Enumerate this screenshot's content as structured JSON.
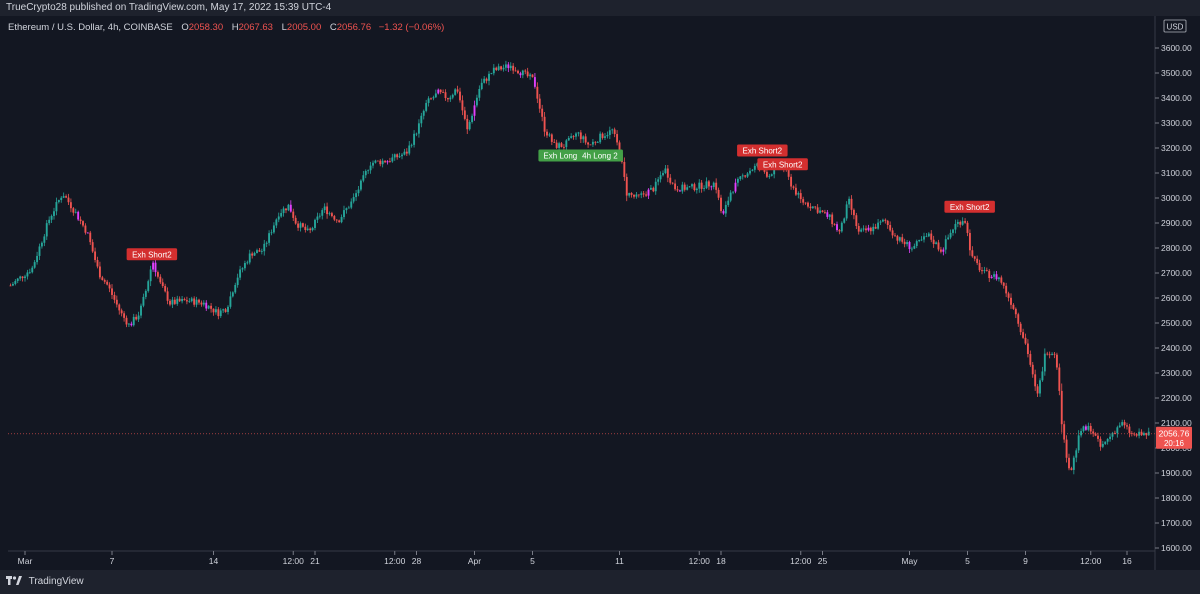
{
  "header": {
    "publish_line": "TrueCrypto28 published on TradingView.com, May 17, 2022 15:39 UTC-4"
  },
  "legend": {
    "symbol": "Ethereum / U.S. Dollar, 4h, COINBASE",
    "o_label": "O",
    "o_value": "2058.30",
    "h_label": "H",
    "h_value": "2067.63",
    "l_label": "L",
    "l_value": "2005.00",
    "c_label": "C",
    "c_value": "2056.76",
    "change": "−1.32 (−0.06%)"
  },
  "footer": {
    "brand": "TradingView"
  },
  "colors": {
    "background": "#131722",
    "up": "#26a69a",
    "down": "#ef5350",
    "bar_pink": "#e040fb",
    "signal_short": "#d32f2f",
    "signal_long": "#43a047",
    "price_label": "#ef5350"
  },
  "chart_data": {
    "type": "candlestick",
    "timeframe": "4h",
    "currency_label": "USD",
    "ylim": [
      1600,
      3700
    ],
    "y_ticks": [
      1600,
      1700,
      1800,
      1900,
      2000,
      2100,
      2200,
      2300,
      2400,
      2500,
      2600,
      2700,
      2800,
      2900,
      3000,
      3100,
      3200,
      3300,
      3400,
      3500,
      3600
    ],
    "y_tick_labels": [
      "1600.00",
      "1700.00",
      "1800.00",
      "1900.00",
      "2000.00",
      "2100.00",
      "2200.00",
      "2300.00",
      "2400.00",
      "2500.00",
      "2600.00",
      "2700.00",
      "2800.00",
      "2900.00",
      "3000.00",
      "3100.00",
      "3200.00",
      "3300.00",
      "3400.00",
      "3500.00",
      "3600.00"
    ],
    "x_ticks": [
      {
        "label": "Mar",
        "d": 0
      },
      {
        "label": "7",
        "d": 6
      },
      {
        "label": "14",
        "d": 13
      },
      {
        "label": "12:00",
        "d": 18.5
      },
      {
        "label": "21",
        "d": 20
      },
      {
        "label": "12:00",
        "d": 25.5
      },
      {
        "label": "28",
        "d": 27
      },
      {
        "label": "Apr",
        "d": 31
      },
      {
        "label": "5",
        "d": 35
      },
      {
        "label": "11",
        "d": 41
      },
      {
        "label": "12:00",
        "d": 46.5
      },
      {
        "label": "18",
        "d": 48
      },
      {
        "label": "12:00",
        "d": 53.5
      },
      {
        "label": "25",
        "d": 55
      },
      {
        "label": "May",
        "d": 61
      },
      {
        "label": "5",
        "d": 65
      },
      {
        "label": "9",
        "d": 69
      },
      {
        "label": "12:00",
        "d": 73.5
      },
      {
        "label": "16",
        "d": 76
      }
    ],
    "last_price": 2056.76,
    "last_price_label": "2056.76",
    "countdown": "20:16",
    "anchors": [
      [
        -1,
        2650
      ],
      [
        0.5,
        2720
      ],
      [
        1.7,
        2920
      ],
      [
        2.6,
        3020
      ],
      [
        3.5,
        2940
      ],
      [
        4.3,
        2860
      ],
      [
        5.1,
        2700
      ],
      [
        5.7,
        2650
      ],
      [
        6.6,
        2540
      ],
      [
        7.2,
        2490
      ],
      [
        7.9,
        2540
      ],
      [
        8.3,
        2620
      ],
      [
        8.8,
        2750
      ],
      [
        9.3,
        2660
      ],
      [
        10.0,
        2580
      ],
      [
        11.2,
        2590
      ],
      [
        12.3,
        2580
      ],
      [
        13.3,
        2540
      ],
      [
        13.9,
        2560
      ],
      [
        14.6,
        2680
      ],
      [
        15.6,
        2780
      ],
      [
        16.4,
        2790
      ],
      [
        17.5,
        2940
      ],
      [
        18.2,
        2970
      ],
      [
        18.7,
        2900
      ],
      [
        19.6,
        2860
      ],
      [
        20.6,
        2960
      ],
      [
        21.6,
        2910
      ],
      [
        22.6,
        2990
      ],
      [
        23.2,
        3060
      ],
      [
        23.8,
        3140
      ],
      [
        25.0,
        3150
      ],
      [
        26.3,
        3180
      ],
      [
        27.1,
        3280
      ],
      [
        27.7,
        3380
      ],
      [
        28.5,
        3420
      ],
      [
        29.2,
        3400
      ],
      [
        29.8,
        3440
      ],
      [
        30.5,
        3270
      ],
      [
        31.4,
        3450
      ],
      [
        32.3,
        3510
      ],
      [
        33.5,
        3530
      ],
      [
        34.3,
        3500
      ],
      [
        35.1,
        3470
      ],
      [
        35.8,
        3280
      ],
      [
        36.5,
        3210
      ],
      [
        37.2,
        3210
      ],
      [
        38.1,
        3260
      ],
      [
        38.9,
        3210
      ],
      [
        39.8,
        3250
      ],
      [
        40.5,
        3270
      ],
      [
        41.0,
        3190
      ],
      [
        41.5,
        3020
      ],
      [
        42.2,
        3000
      ],
      [
        43.4,
        3040
      ],
      [
        44.1,
        3120
      ],
      [
        44.8,
        3040
      ],
      [
        45.8,
        3040
      ],
      [
        46.7,
        3050
      ],
      [
        47.6,
        3060
      ],
      [
        48.1,
        2920
      ],
      [
        48.7,
        3030
      ],
      [
        49.7,
        3100
      ],
      [
        50.5,
        3130
      ],
      [
        51.3,
        3090
      ],
      [
        52.1,
        3150
      ],
      [
        52.8,
        3060
      ],
      [
        53.5,
        2990
      ],
      [
        54.5,
        2960
      ],
      [
        55.5,
        2920
      ],
      [
        56.2,
        2860
      ],
      [
        56.8,
        2990
      ],
      [
        57.5,
        2860
      ],
      [
        58.5,
        2880
      ],
      [
        59.3,
        2910
      ],
      [
        60.1,
        2840
      ],
      [
        61.2,
        2800
      ],
      [
        62.3,
        2850
      ],
      [
        63.2,
        2790
      ],
      [
        64.1,
        2890
      ],
      [
        64.8,
        2920
      ],
      [
        65.3,
        2760
      ],
      [
        66.1,
        2700
      ],
      [
        67.2,
        2680
      ],
      [
        68.2,
        2560
      ],
      [
        69.1,
        2400
      ],
      [
        69.8,
        2200
      ],
      [
        70.4,
        2390
      ],
      [
        71.1,
        2380
      ],
      [
        71.6,
        2040
      ],
      [
        72.1,
        1900
      ],
      [
        72.8,
        2070
      ],
      [
        73.5,
        2080
      ],
      [
        74.2,
        2000
      ],
      [
        75.0,
        2060
      ],
      [
        75.6,
        2100
      ],
      [
        76.4,
        2050
      ],
      [
        77.6,
        2056.76
      ]
    ],
    "signals": [
      {
        "label": "Exh Short2",
        "type": "short",
        "d": 8.75,
        "price": 2775
      },
      {
        "label": "Exh Long 1",
        "type": "long",
        "d": 37.15,
        "price": 3170
      },
      {
        "label": "4h Long 2",
        "type": "long",
        "d": 39.65,
        "price": 3170
      },
      {
        "label": "Exh Short2",
        "type": "short",
        "d": 50.85,
        "price": 3190
      },
      {
        "label": "Exh Short2",
        "type": "short",
        "d": 52.25,
        "price": 3135
      },
      {
        "label": "Exh Short2",
        "type": "short",
        "d": 65.15,
        "price": 2965
      }
    ]
  }
}
